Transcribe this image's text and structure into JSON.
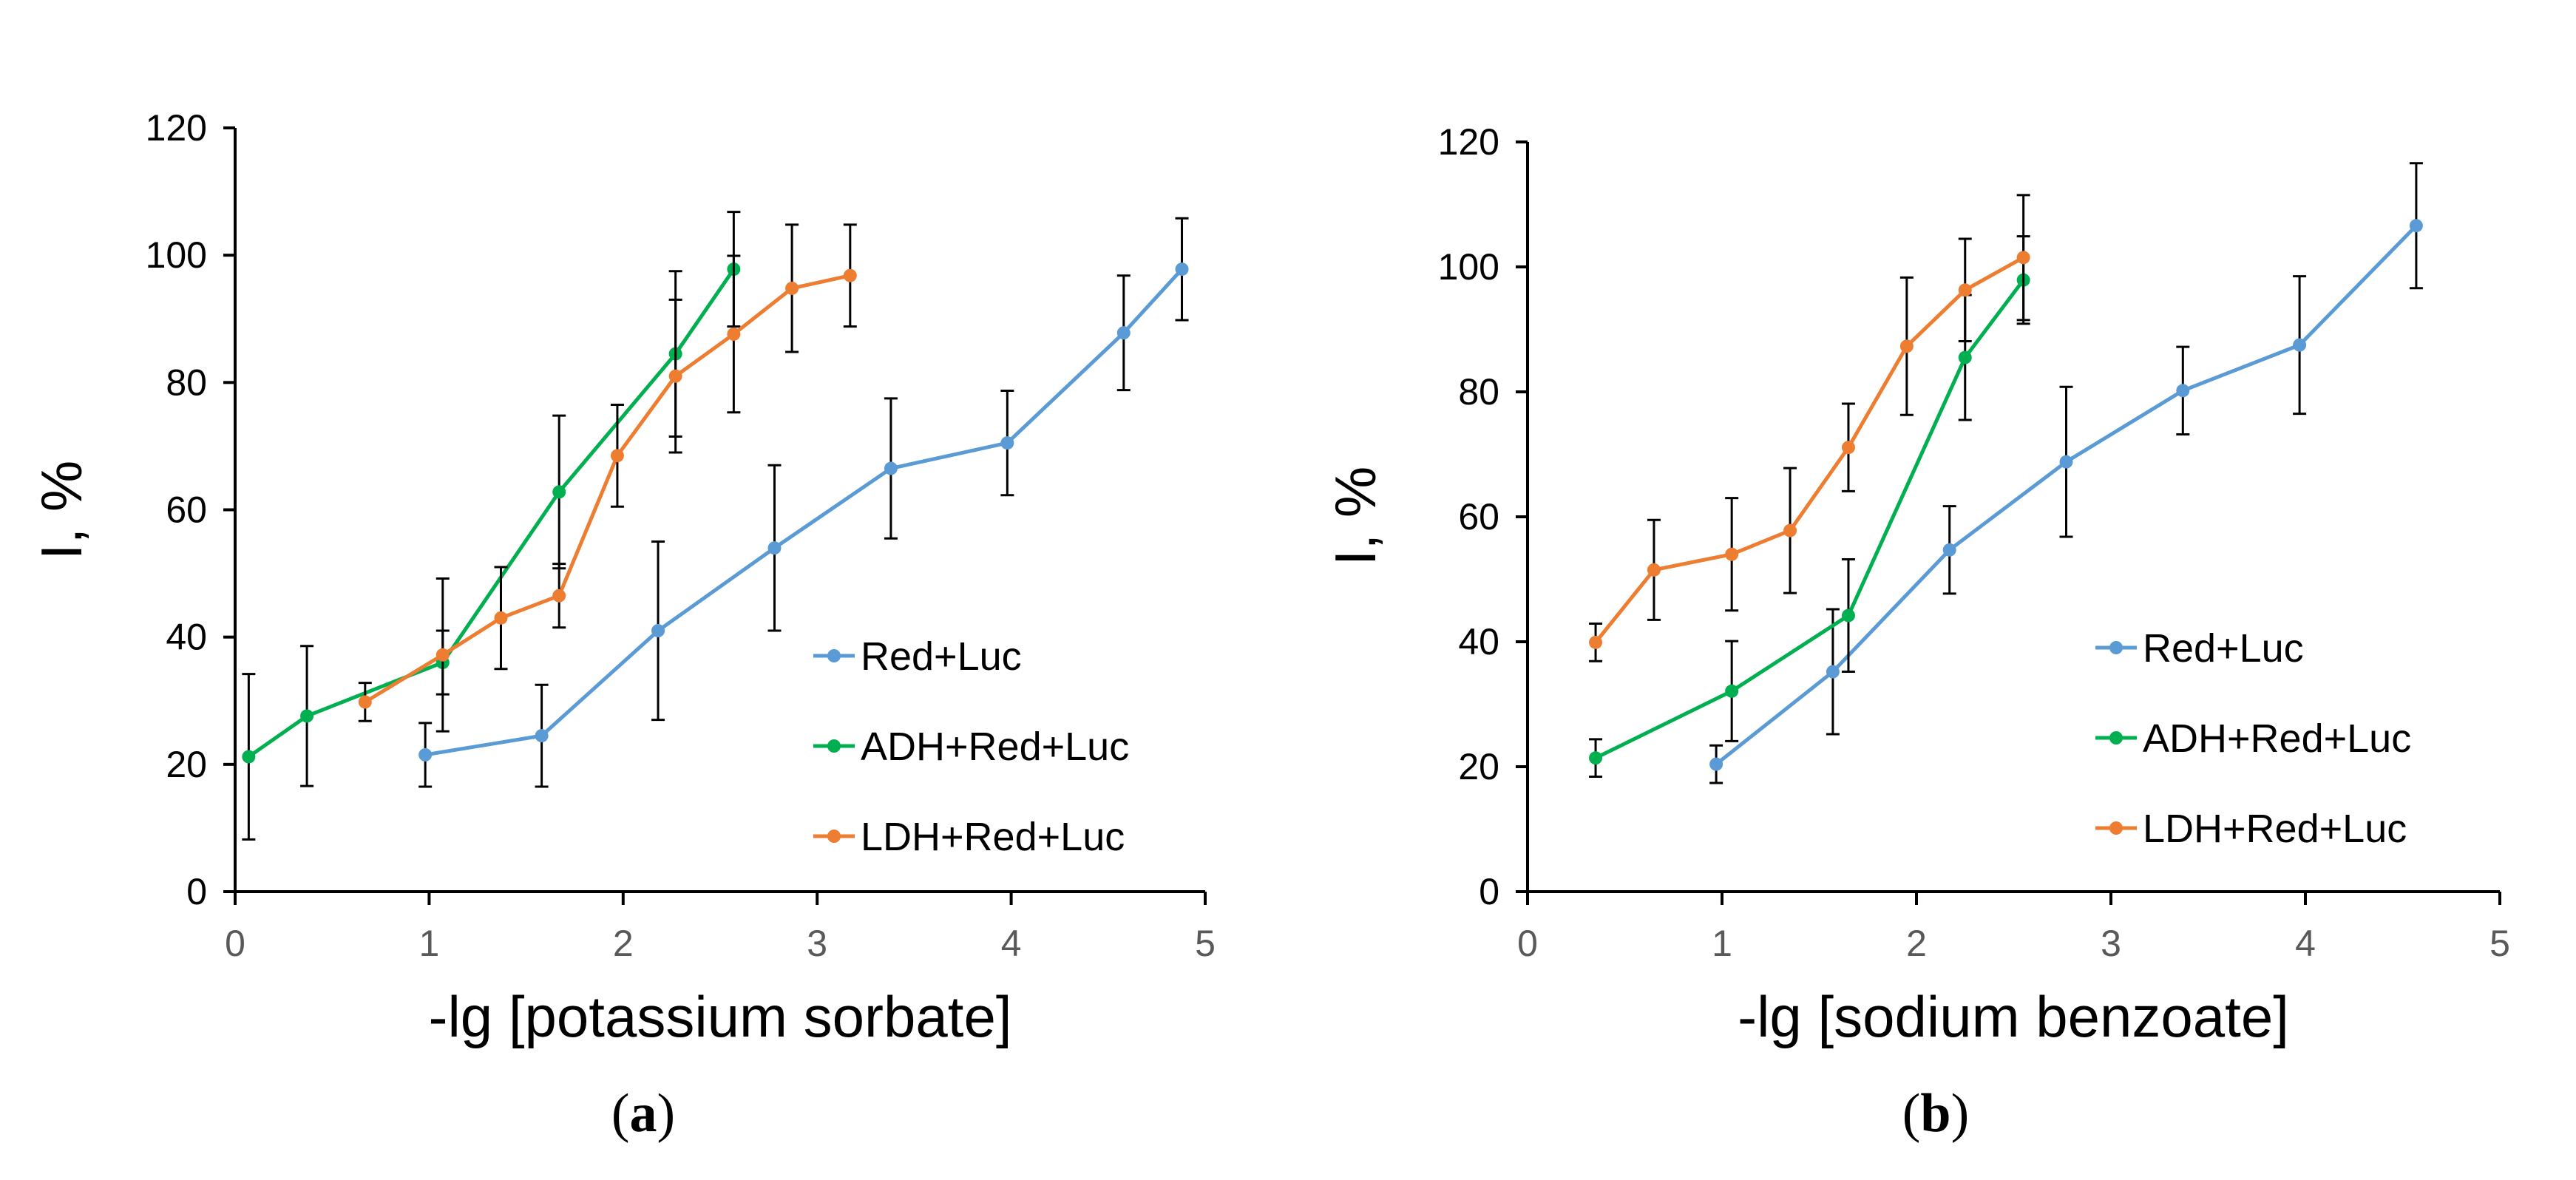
{
  "chart_data": [
    {
      "type": "line",
      "panel_label": "a",
      "xlabel": "-lg [potassium sorbate]",
      "ylabel": "I, %",
      "xlim": [
        0,
        5
      ],
      "ylim": [
        0,
        120
      ],
      "xticks": [
        0,
        1,
        2,
        3,
        4,
        5
      ],
      "yticks": [
        0,
        20,
        40,
        60,
        80,
        100,
        120
      ],
      "xtick_labels": [
        "0",
        "1",
        "2",
        "3",
        "4",
        "5"
      ],
      "ytick_labels": [
        "0",
        "20",
        "40",
        "60",
        "80",
        "100",
        "120"
      ],
      "grid": false,
      "legend_position": "center-right",
      "series": [
        {
          "name": "Red+Luc",
          "color": "#5B9BD5",
          "x": [
            0.98,
            1.58,
            2.18,
            2.78,
            3.38,
            3.98,
            4.58,
            4.88
          ],
          "y": [
            21.5,
            24.5,
            41,
            54,
            66.5,
            70.5,
            87.8,
            97.8
          ],
          "err": [
            5,
            8,
            14,
            13,
            11,
            8.2,
            9,
            8
          ]
        },
        {
          "name": "ADH+Red+Luc",
          "color": "#00B050",
          "x": [
            0.07,
            0.37,
            1.07,
            1.67,
            2.27,
            2.57
          ],
          "y": [
            21.2,
            27.6,
            36,
            62.8,
            84.5,
            97.8
          ],
          "err": [
            13,
            11,
            5,
            12,
            13,
            9
          ]
        },
        {
          "name": "LDH+Red+Luc",
          "color": "#ED7D31",
          "x": [
            0.67,
            1.07,
            1.37,
            1.67,
            1.97,
            2.27,
            2.57,
            2.87,
            3.17
          ],
          "y": [
            29.8,
            37.2,
            43,
            46.5,
            68.5,
            81,
            87.6,
            94.8,
            96.8
          ],
          "err": [
            3,
            12,
            8,
            5,
            8,
            12,
            12.3,
            10,
            8
          ]
        }
      ]
    },
    {
      "type": "line",
      "panel_label": "b",
      "xlabel": "-lg [sodium benzoate]",
      "ylabel": "I, %",
      "xlim": [
        0,
        5
      ],
      "ylim": [
        0,
        120
      ],
      "xticks": [
        0,
        1,
        2,
        3,
        4,
        5
      ],
      "yticks": [
        0,
        20,
        40,
        60,
        80,
        100,
        120
      ],
      "xtick_labels": [
        "0",
        "1",
        "2",
        "3",
        "4",
        "5"
      ],
      "ytick_labels": [
        "0",
        "20",
        "40",
        "60",
        "80",
        "100",
        "120"
      ],
      "grid": false,
      "legend_position": "center-right",
      "series": [
        {
          "name": "Red+Luc",
          "color": "#5B9BD5",
          "x": [
            0.97,
            1.57,
            2.17,
            2.77,
            3.37,
            3.97,
            4.57
          ],
          "y": [
            20.4,
            35.2,
            54.7,
            68.8,
            80.2,
            87.5,
            106.6
          ],
          "err": [
            3,
            10,
            7,
            12,
            7,
            11,
            10
          ]
        },
        {
          "name": "ADH+Red+Luc",
          "color": "#00B050",
          "x": [
            0.35,
            1.05,
            1.65,
            2.25,
            2.55
          ],
          "y": [
            21.4,
            32.1,
            44.2,
            85.5,
            97.9
          ],
          "err": [
            3,
            8,
            9,
            10,
            7
          ]
        },
        {
          "name": "LDH+Red+Luc",
          "color": "#ED7D31",
          "x": [
            0.35,
            0.65,
            1.05,
            1.35,
            1.65,
            1.95,
            2.25,
            2.55
          ],
          "y": [
            39.9,
            51.5,
            54,
            57.8,
            71.1,
            87.3,
            96.3,
            101.5
          ],
          "err": [
            3,
            8,
            9,
            10,
            7,
            11,
            8.2,
            10
          ]
        }
      ]
    }
  ]
}
